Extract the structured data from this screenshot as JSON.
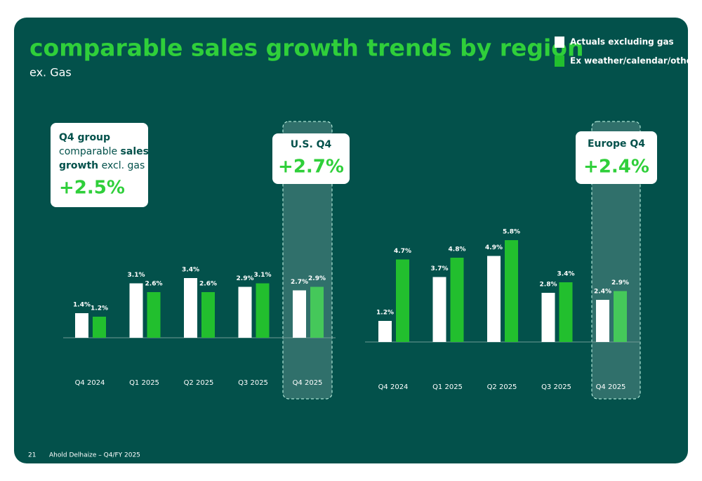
{
  "title": "comparable sales growth trends by region",
  "subtitle": "ex. Gas",
  "callouts": {
    "group": {
      "line1": "Q4 group",
      "line2a": "comparable",
      "line2b": "sales",
      "line3a": "growth",
      "line3b": "excl. gas",
      "value": "+2.5%"
    },
    "us": {
      "label": "U.S. Q4",
      "value": "+2.7%"
    },
    "europe": {
      "label": "Europe Q4",
      "value": "+2.4%"
    }
  },
  "footer": {
    "page": "21",
    "text": "Ahold Delhaize – Q4/FY 2025"
  },
  "chart_data": [
    {
      "type": "bar",
      "categories": [
        "Q4 2024",
        "Q1 2025",
        "Q2 2025",
        "Q3 2025",
        "Q4 2025"
      ],
      "series": [
        {
          "name": "Actuals excluding gas",
          "color": "#ffffff",
          "values": [
            1.4,
            3.1,
            3.4,
            2.9,
            2.7
          ],
          "value_labels": [
            "1.4%",
            "3.1%",
            "3.4%",
            "2.9%",
            "2.7%"
          ]
        },
        {
          "name": "Ex weather/calendar/other",
          "color": "#22bf2e",
          "values": [
            1.2,
            2.6,
            2.6,
            3.1,
            2.9
          ],
          "value_labels": [
            "1.2%",
            "2.6%",
            "2.6%",
            "3.1%",
            "2.9%"
          ]
        }
      ]
    },
    {
      "type": "bar",
      "categories": [
        "Q4 2024",
        "Q1 2025",
        "Q2 2025",
        "Q3 2025",
        "Q4 2025"
      ],
      "series": [
        {
          "color": "#ffffff",
          "values": [
            1.2,
            3.7,
            4.9,
            2.8,
            2.4
          ],
          "value_labels": [
            "1.2%",
            "3.7%",
            "4.9%",
            "2.8%",
            "2.4%"
          ]
        },
        {
          "color": "#22bf2e",
          "values": [
            4.7,
            4.8,
            5.8,
            3.4,
            2.9
          ],
          "value_labels": [
            "4.7%",
            "4.8%",
            "5.8%",
            "3.4%",
            "2.9%"
          ]
        }
      ]
    }
  ]
}
